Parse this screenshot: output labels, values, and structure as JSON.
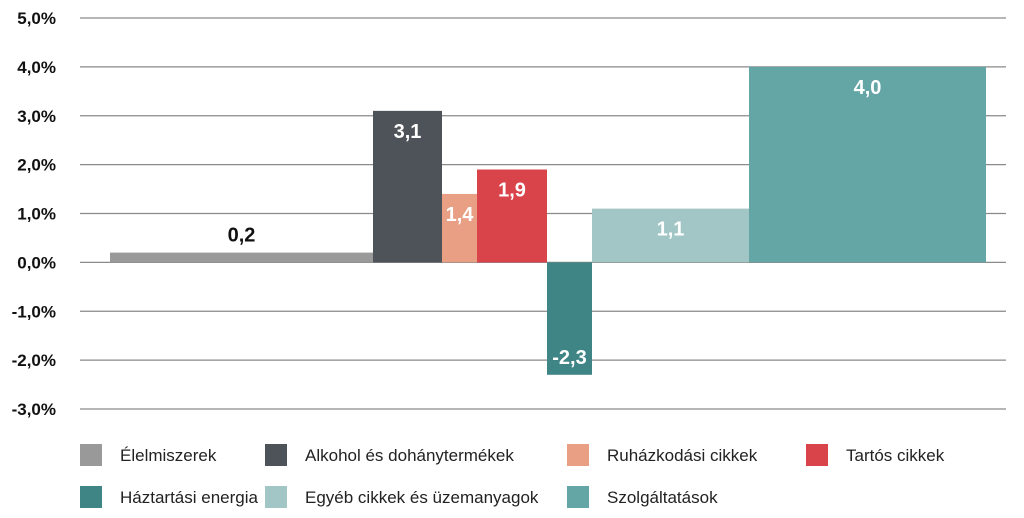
{
  "chart_data": {
    "type": "bar",
    "variant": "variable-width",
    "title": "",
    "xlabel": "",
    "ylabel": "",
    "ylim": [
      -3,
      5
    ],
    "ytick_values": [
      5,
      4,
      3,
      2,
      1,
      0,
      -1,
      -2,
      -3
    ],
    "yticks": [
      "5,0%",
      "4,0%",
      "3,0%",
      "2,0%",
      "1,0%",
      "0,0%",
      "-1,0%",
      "-2,0%",
      "-3,0%"
    ],
    "grid": true,
    "legend_position": "bottom",
    "categories": [
      "Élelmiszerek",
      "Alkohol és dohánytermékek",
      "Ruházkodási cikkek",
      "Tartós cikkek",
      "Háztartási energia",
      "Egyéb cikkek és üzemanyagok",
      "Szolgáltatások"
    ],
    "values": [
      0.2,
      3.1,
      1.4,
      1.9,
      -2.3,
      1.1,
      4.0
    ],
    "value_labels": [
      "0,2",
      "3,1",
      "1,4",
      "1,9",
      "-2,3",
      "1,1",
      "4,0"
    ],
    "weights": [
      263,
      69,
      35,
      70,
      45,
      157,
      237
    ],
    "colors": [
      "#999999",
      "#4e5359",
      "#e99f84",
      "#d9434a",
      "#3f8586",
      "#a2c6c6",
      "#64a5a6"
    ],
    "label_colors": [
      "#111111",
      "#ffffff",
      "#ffffff",
      "#ffffff",
      "#ffffff",
      "#ffffff",
      "#ffffff"
    ]
  }
}
